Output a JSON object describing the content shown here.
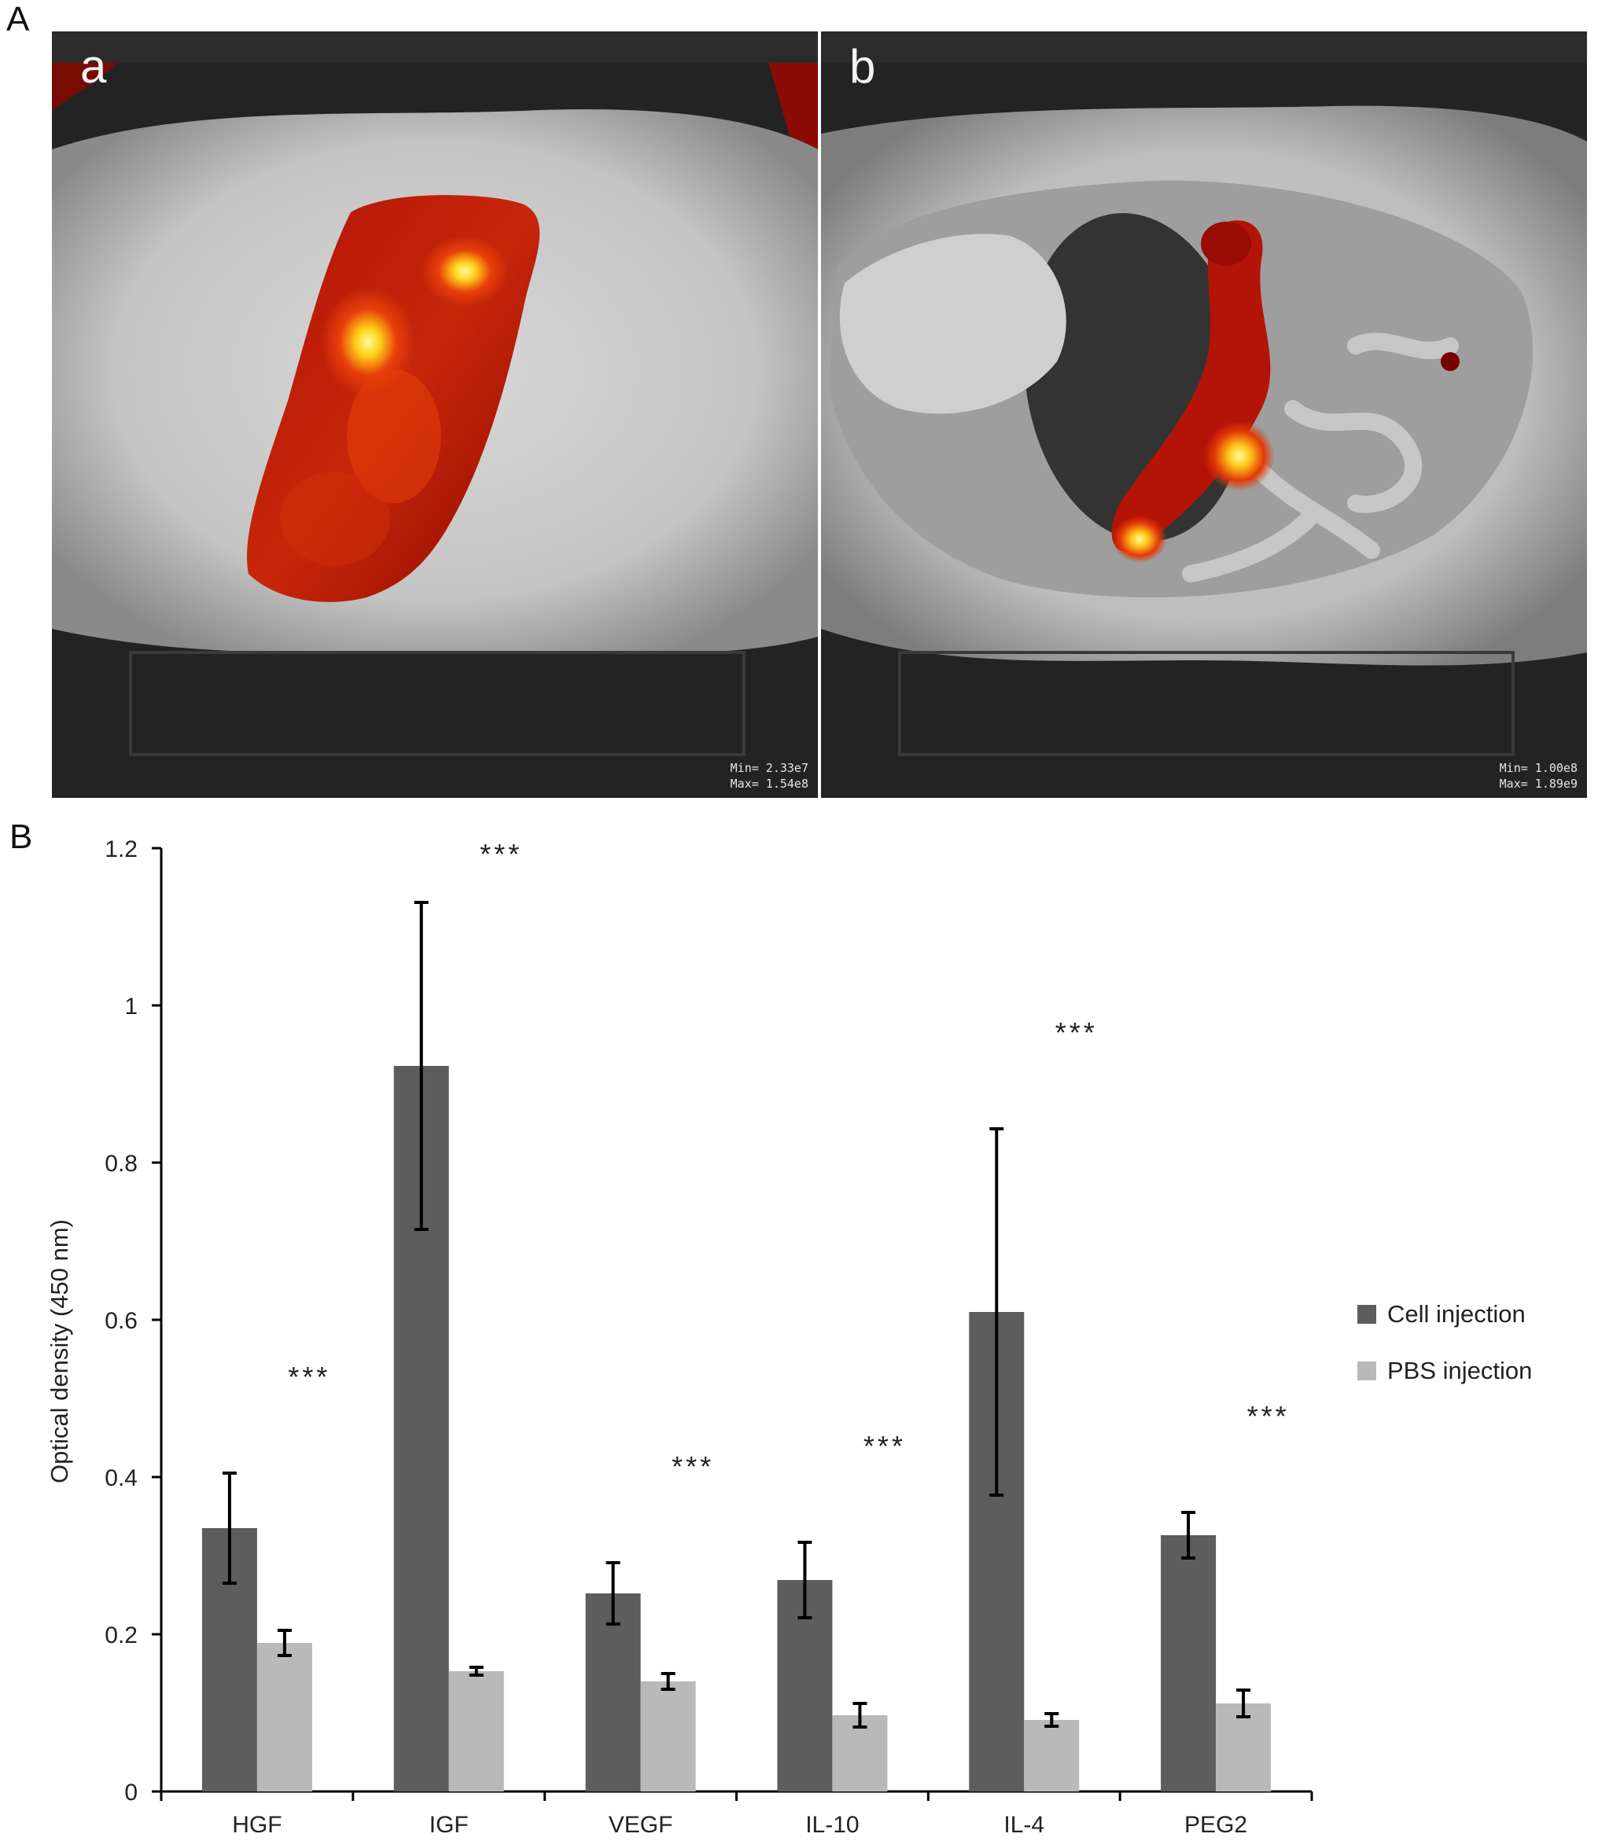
{
  "panels": {
    "A": {
      "label": "A",
      "images": [
        {
          "label": "a",
          "scale_min": "Min= 2.33e7",
          "scale_max": "Max= 1.54e8"
        },
        {
          "label": "b",
          "scale_min": "Min= 1.00e8",
          "scale_max": "Max= 1.89e9"
        }
      ]
    },
    "B": {
      "label": "B"
    }
  },
  "colors": {
    "cell": "#5d5d5d",
    "pbs": "#b9b9b9",
    "axis": "#000000",
    "heat_hot": "#fff24a",
    "heat_mid": "#e23a08",
    "heat_low": "#7a0000"
  },
  "chart_data": {
    "type": "bar",
    "categories": [
      "HGF",
      "IGF",
      "VEGF",
      "IL-10",
      "IL-4",
      "PEG2"
    ],
    "series": [
      {
        "name": "Cell injection",
        "values": [
          0.335,
          0.923,
          0.252,
          0.269,
          0.61,
          0.326
        ],
        "errors": [
          0.07,
          0.208,
          0.039,
          0.048,
          0.233,
          0.029
        ]
      },
      {
        "name": "PBS injection",
        "values": [
          0.189,
          0.153,
          0.14,
          0.097,
          0.091,
          0.112
        ],
        "errors": [
          0.016,
          0.005,
          0.01,
          0.015,
          0.008,
          0.017
        ]
      }
    ],
    "significance": [
      "***",
      "***",
      "***",
      "***",
      "***",
      "***"
    ],
    "ylabel": "Optical density (450 nm)",
    "xlabel": "",
    "ylim": [
      0,
      1.2
    ],
    "yticks": [
      "0",
      "0.2",
      "0.4",
      "0.6",
      "0.8",
      "1",
      "1.2"
    ],
    "legend_position": "right",
    "grid": false
  }
}
